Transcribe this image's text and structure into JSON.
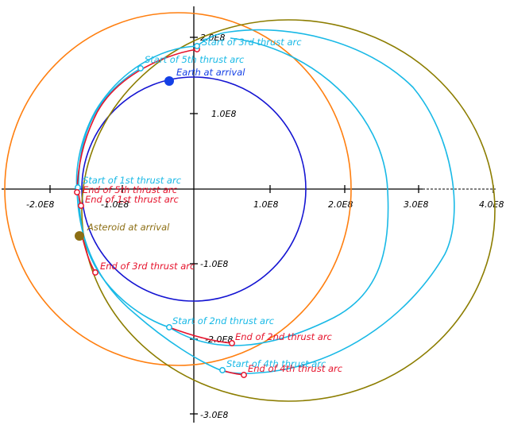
{
  "axes": {
    "x_tick_labels": [
      "-2.0E8",
      "-1.0E8",
      "1.0E8",
      "2.0E8",
      "3.0E8",
      "4.0E8"
    ],
    "y_tick_labels": [
      "2.0E8",
      "1.0E8",
      "-1.0E8",
      "-2.0E8",
      "-3.0E8"
    ]
  },
  "labels": {
    "earth_at_arrival": "Earth at arrival",
    "asteroid_at_arrival": "Asteroid at arrival",
    "start_1st": "Start of 1st thrust arc",
    "end_1st": "End of 1st thrust arc",
    "start_2nd": "Start of 2nd thrust arc",
    "end_2nd": "End of 2nd thrust arc",
    "start_3rd": "Start of 3rd thrust arc",
    "end_3rd": "End of 3rd thrust arc",
    "start_4th": "Start of 4th thrust arc",
    "end_4th": "End of 4th thrust arc",
    "start_5th": "Start of 5th thrust arc",
    "end_5th": "End of 5th thrust arc"
  },
  "colors": {
    "earth_orbit": "#1414d2",
    "transfer_orbit": "#ff7f10",
    "asteroid_orbit": "#8c7d00",
    "coast_arc": "#19b9e6",
    "thrust_arc": "#e6142d",
    "axis": "#000000",
    "earth_marker": "#1440e6",
    "asteroid_marker": "#8c6e14"
  }
}
